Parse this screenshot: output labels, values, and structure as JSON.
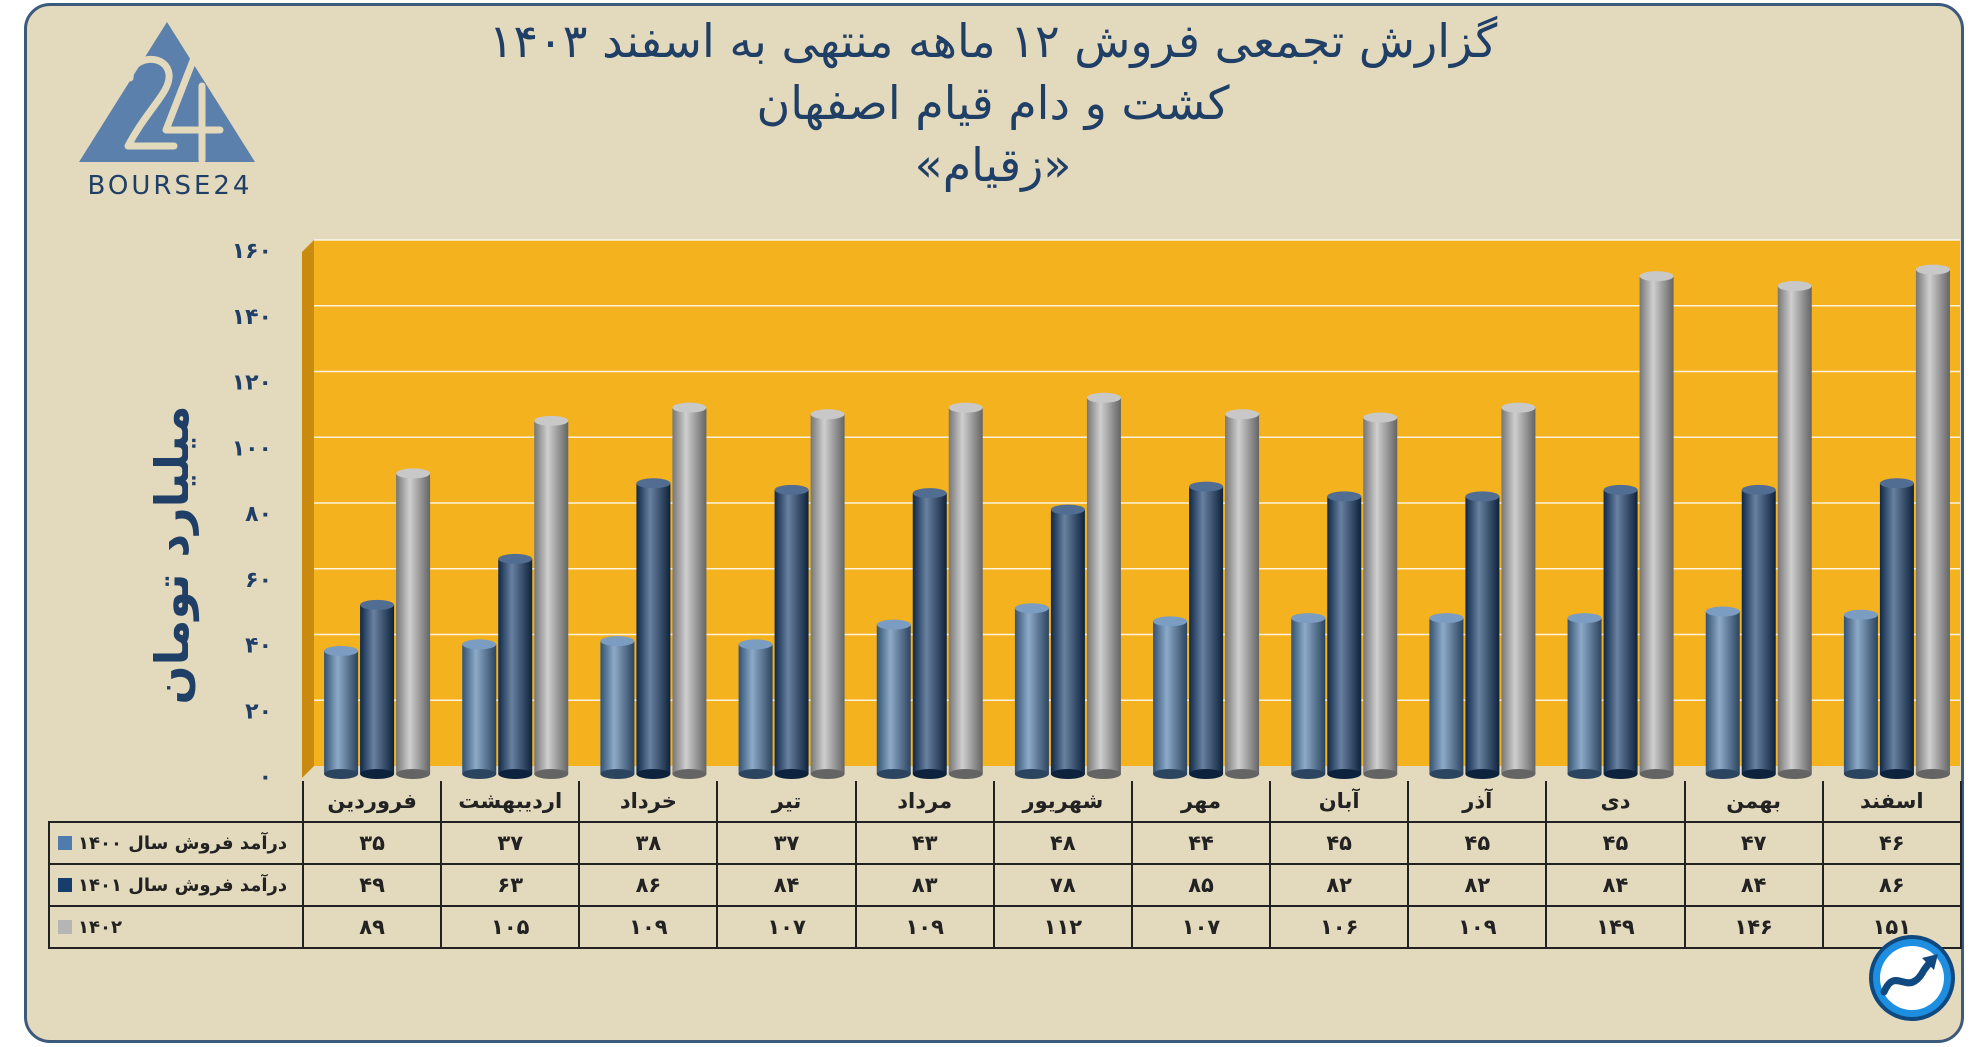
{
  "title_line1": "گزارش تجمعی فروش ۱۲ ماهه منتهی به اسفند ۱۴۰۳",
  "title_line2": "کشت و دام قیام اصفهان",
  "title_line3": "«زقیام»",
  "logo_text": "BOURSE24",
  "colors": {
    "background": "#e3d9bd",
    "plot_area": "#f5b21f",
    "series_1400": "#4f7cac",
    "series_1401": "#173d6d",
    "series_1402": "#b5b5b5",
    "title": "#1f3f66"
  },
  "chart_data": {
    "type": "bar",
    "ylabel": "میلیارد تومان",
    "ylim": [
      0,
      160
    ],
    "yticks": [
      "۰",
      "۲۰",
      "۴۰",
      "۶۰",
      "۸۰",
      "۱۰۰",
      "۱۲۰",
      "۱۴۰",
      "۱۶۰"
    ],
    "grid": true,
    "categories": [
      "فروردین",
      "اردیبهشت",
      "خرداد",
      "تیر",
      "مرداد",
      "شهریور",
      "مهر",
      "آبان",
      "آذر",
      "دی",
      "بهمن",
      "اسفند"
    ],
    "series": [
      {
        "name": "درآمد فروش سال ۱۴۰۰",
        "values": [
          35,
          37,
          38,
          37,
          43,
          48,
          44,
          45,
          45,
          45,
          47,
          46
        ],
        "labels": [
          "۳۵",
          "۳۷",
          "۳۸",
          "۳۷",
          "۴۳",
          "۴۸",
          "۴۴",
          "۴۵",
          "۴۵",
          "۴۵",
          "۴۷",
          "۴۶"
        ]
      },
      {
        "name": "درآمد فروش سال ۱۴۰۱",
        "values": [
          49,
          63,
          86,
          84,
          83,
          78,
          85,
          82,
          82,
          84,
          84,
          86
        ],
        "labels": [
          "۴۹",
          "۶۳",
          "۸۶",
          "۸۴",
          "۸۳",
          "۷۸",
          "۸۵",
          "۸۲",
          "۸۲",
          "۸۴",
          "۸۴",
          "۸۶"
        ]
      },
      {
        "name": "۱۴۰۲",
        "values": [
          89,
          105,
          109,
          107,
          109,
          112,
          107,
          106,
          109,
          149,
          146,
          151
        ],
        "labels": [
          "۸۹",
          "۱۰۵",
          "۱۰۹",
          "۱۰۷",
          "۱۰۹",
          "۱۱۲",
          "۱۰۷",
          "۱۰۶",
          "۱۰۹",
          "۱۴۹",
          "۱۴۶",
          "۱۵۱"
        ]
      }
    ]
  }
}
